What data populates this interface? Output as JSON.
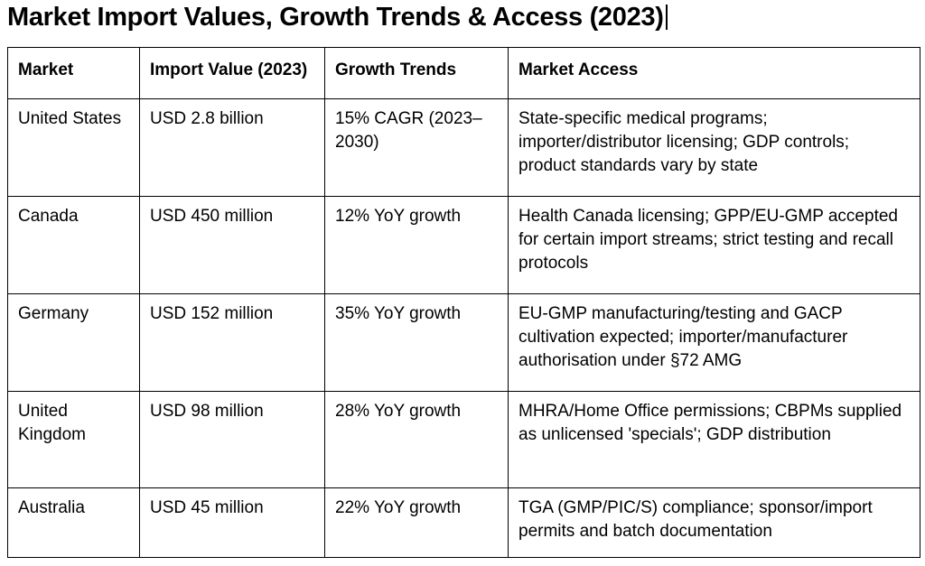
{
  "title": "Market Import Values, Growth Trends & Access (2023)",
  "table": {
    "headers": [
      "Market",
      "Import Value (2023)",
      "Growth Trends",
      "Market Access"
    ],
    "rows": [
      [
        "United States",
        "USD 2.8 billion",
        "15% CAGR (2023–2030)",
        "State-specific medical programs; importer/distributor licensing; GDP controls; product standards vary by state"
      ],
      [
        "Canada",
        "USD 450 million",
        "12% YoY growth",
        "Health Canada licensing; GPP/EU-GMP accepted for certain import streams; strict testing and recall protocols"
      ],
      [
        "Germany",
        "USD 152 million",
        "35% YoY growth",
        "EU-GMP manufacturing/testing and GACP cultivation expected; importer/manufacturer authorisation under §72 AMG"
      ],
      [
        "United Kingdom",
        "USD 98 million",
        "28% YoY growth",
        "MHRA/Home Office permissions; CBPMs supplied as unlicensed 'specials'; GDP distribution"
      ],
      [
        "Australia",
        "USD 45 million",
        "22% YoY growth",
        "TGA (GMP/PIC/S) compliance; sponsor/import permits and batch documentation"
      ]
    ]
  }
}
